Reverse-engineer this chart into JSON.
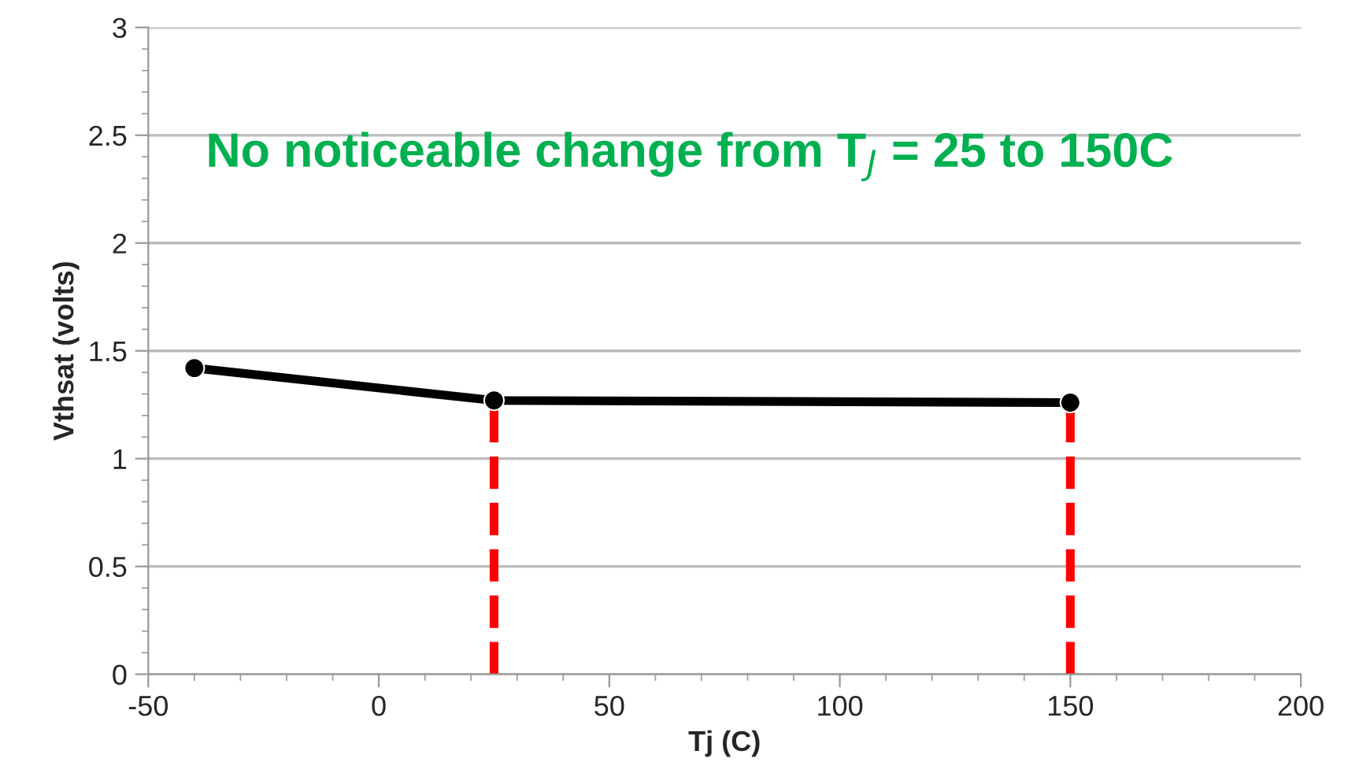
{
  "chart_data": {
    "type": "line",
    "xlabel": "Tj (C)",
    "ylabel": "Vthsat (volts)",
    "x": [
      -40,
      25,
      150
    ],
    "series": [
      {
        "color": "#000000",
        "values": [
          1.42,
          1.27,
          1.26
        ]
      }
    ],
    "xlim": [
      -50,
      200
    ],
    "xticks": [
      -50,
      0,
      50,
      100,
      150,
      200
    ],
    "ylim": [
      0,
      3
    ],
    "yticks": [
      0,
      0.5,
      1,
      1.5,
      2,
      2.5,
      3
    ],
    "grid": "y",
    "marker": "circle",
    "line_style": "solid",
    "ref_lines": [
      {
        "axis": "x",
        "value": 25,
        "color": "#ff0000",
        "line_style": "dashed"
      },
      {
        "axis": "x",
        "value": 150,
        "color": "#ff0000",
        "line_style": "dashed"
      }
    ],
    "annotations": [
      "No noticeable change from T$_{J}$ = 25 to 150C"
    ]
  }
}
